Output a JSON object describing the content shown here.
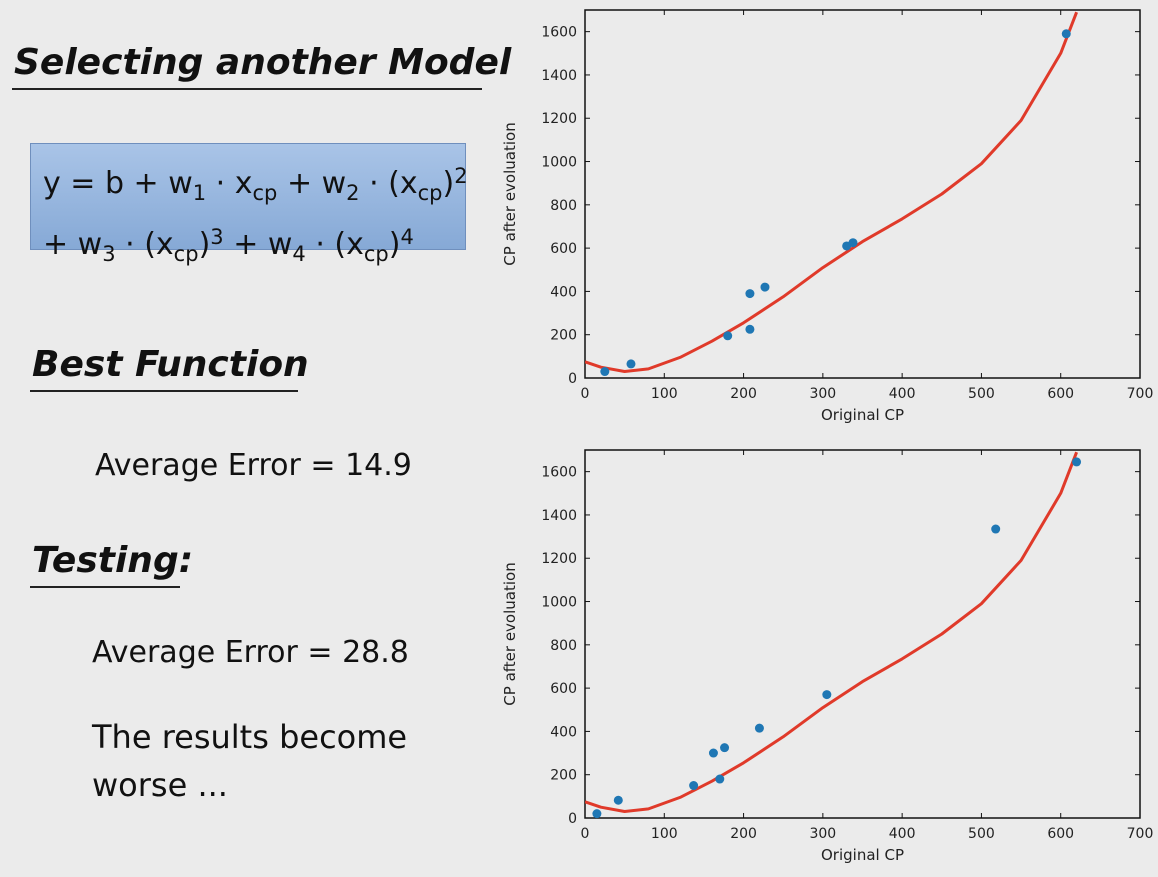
{
  "slide": {
    "title": "Selecting another Model",
    "formula": {
      "line1": [
        "y = b + w",
        "1",
        " · x",
        "cp",
        " + w",
        "2",
        " · (x",
        "cp",
        ")",
        "2"
      ],
      "line2": [
        "+ w",
        "3",
        " · (x",
        "cp",
        ")",
        "3",
        " + w",
        "4",
        " · (x",
        "cp",
        ")",
        "4"
      ]
    },
    "best_function_heading": "Best Function",
    "train_error": "Average Error = 14.9",
    "testing_heading": "Testing:",
    "test_error": "Average Error = 28.8",
    "note_line1": "The results become",
    "note_line2": "worse ..."
  },
  "chart_data": [
    {
      "type": "scatter",
      "xlabel": "Original CP",
      "ylabel": "CP after evoluation",
      "xlim": [
        0,
        700
      ],
      "ylim": [
        0,
        1700
      ],
      "xticks": [
        0,
        100,
        200,
        300,
        400,
        500,
        600,
        700
      ],
      "yticks": [
        0,
        200,
        400,
        600,
        800,
        1000,
        1200,
        1400,
        1600
      ],
      "points": [
        [
          25,
          30
        ],
        [
          58,
          65
        ],
        [
          180,
          195
        ],
        [
          208,
          225
        ],
        [
          208,
          390
        ],
        [
          227,
          420
        ],
        [
          330,
          610
        ],
        [
          338,
          625
        ],
        [
          607,
          1590
        ]
      ],
      "fit_curve": [
        [
          0,
          75
        ],
        [
          20,
          50
        ],
        [
          50,
          30
        ],
        [
          80,
          42
        ],
        [
          120,
          95
        ],
        [
          160,
          170
        ],
        [
          200,
          255
        ],
        [
          250,
          375
        ],
        [
          300,
          510
        ],
        [
          350,
          630
        ],
        [
          400,
          735
        ],
        [
          450,
          850
        ],
        [
          500,
          990
        ],
        [
          550,
          1190
        ],
        [
          600,
          1500
        ],
        [
          620,
          1690
        ]
      ],
      "colors": {
        "points": "#1f77b4",
        "curve": "#e03a2a"
      }
    },
    {
      "type": "scatter",
      "xlabel": "Original CP",
      "ylabel": "CP after evoluation",
      "xlim": [
        0,
        700
      ],
      "ylim": [
        0,
        1700
      ],
      "xticks": [
        0,
        100,
        200,
        300,
        400,
        500,
        600,
        700
      ],
      "yticks": [
        0,
        200,
        400,
        600,
        800,
        1000,
        1200,
        1400,
        1600
      ],
      "points": [
        [
          15,
          20
        ],
        [
          42,
          82
        ],
        [
          137,
          150
        ],
        [
          162,
          300
        ],
        [
          170,
          180
        ],
        [
          176,
          325
        ],
        [
          220,
          415
        ],
        [
          305,
          570
        ],
        [
          518,
          1335
        ],
        [
          620,
          1645
        ]
      ],
      "fit_curve": [
        [
          0,
          75
        ],
        [
          20,
          50
        ],
        [
          50,
          30
        ],
        [
          80,
          42
        ],
        [
          120,
          95
        ],
        [
          160,
          170
        ],
        [
          200,
          255
        ],
        [
          250,
          375
        ],
        [
          300,
          510
        ],
        [
          350,
          630
        ],
        [
          400,
          735
        ],
        [
          450,
          850
        ],
        [
          500,
          990
        ],
        [
          550,
          1190
        ],
        [
          600,
          1500
        ],
        [
          620,
          1690
        ]
      ],
      "colors": {
        "points": "#1f77b4",
        "curve": "#e03a2a"
      }
    }
  ]
}
